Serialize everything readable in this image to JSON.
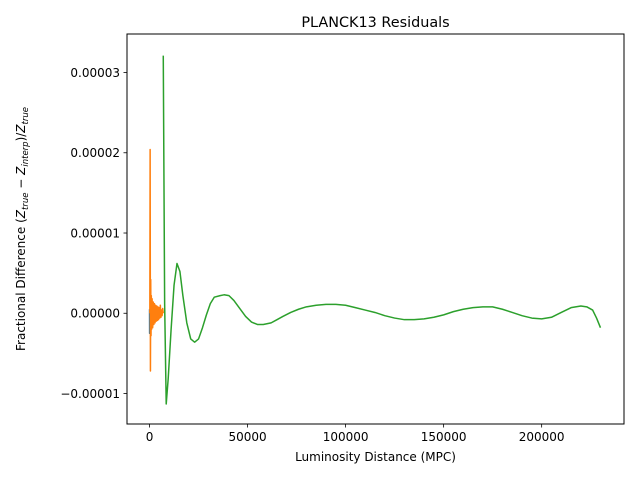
{
  "chart_data": {
    "type": "line",
    "title": "PLANCK13 Residuals",
    "xlabel": "Luminosity Distance (MPC)",
    "ylabel": {
      "prefix": "Fractional Difference (",
      "z": "Z",
      "true_sub": "true",
      "minus": " − ",
      "interp_sub": "interp",
      "mid": ")/",
      "suffix": ""
    },
    "xlim": [
      -11500,
      242000
    ],
    "ylim": [
      -1.38e-05,
      3.48e-05
    ],
    "xticks": [
      0,
      50000,
      100000,
      150000,
      200000
    ],
    "xtick_labels": [
      "0",
      "50000",
      "100000",
      "150000",
      "200000"
    ],
    "yticks": [
      -1e-05,
      0,
      1e-05,
      2e-05,
      3e-05
    ],
    "ytick_labels": [
      "−0.00001",
      "0.00000",
      "0.00001",
      "0.00002",
      "0.00003"
    ],
    "grid": false,
    "series": [
      {
        "color": "#1f77b4",
        "x": [
          0,
          30,
          60,
          100,
          140,
          180,
          220,
          260,
          300
        ],
        "y": [
          5e-07,
          -2.5e-06,
          4e-07,
          -1.8e-06,
          2e-07,
          -1.2e-06,
          -6e-07,
          -2e-07,
          0.0
        ]
      },
      {
        "color": "#ff7f0e",
        "x": [
          150,
          300,
          450,
          600,
          750,
          900,
          1050,
          1300,
          1600,
          1900,
          2200,
          2500,
          2800,
          3100,
          3400,
          3700,
          4000,
          4300,
          4600,
          4900,
          5200,
          5500,
          5800,
          6100,
          6400,
          6700,
          7000
        ],
        "y": [
          0.0,
          2.04e-05,
          -7.2e-06,
          4.2e-06,
          -2.8e-06,
          2.2e-06,
          -2e-06,
          1.8e-06,
          -1.8e-06,
          1.4e-06,
          -1.4e-06,
          1.2e-06,
          -1.2e-06,
          1e-06,
          -1e-06,
          9e-07,
          -9e-07,
          8e-07,
          -8e-07,
          7e-07,
          -6e-07,
          1e-06,
          -5e-07,
          4e-07,
          -3e-07,
          6e-07,
          0.0
        ]
      },
      {
        "color": "#2ca02c",
        "x": [
          7000,
          7700,
          8500,
          9500,
          11000,
          12500,
          14000,
          15500,
          17000,
          19000,
          21000,
          23000,
          25000,
          27000,
          29000,
          31000,
          33000,
          36000,
          38000,
          40500,
          43000,
          46000,
          49000,
          52000,
          55000,
          58000,
          62000,
          65000,
          68000,
          72000,
          76000,
          80000,
          85000,
          90000,
          95000,
          100000,
          105000,
          110000,
          115000,
          120000,
          125000,
          130000,
          135000,
          140000,
          145000,
          150000,
          155000,
          160000,
          165000,
          170000,
          175000,
          180000,
          185000,
          190000,
          195000,
          200000,
          205000,
          210000,
          215000,
          220000,
          223000,
          226000,
          228000,
          230000
        ],
        "y": [
          3.21e-05,
          1.2e-06,
          -1.13e-05,
          -8.2e-06,
          -2e-06,
          3.5e-06,
          6.2e-06,
          5.2e-06,
          2.2e-06,
          -1.2e-06,
          -3.2e-06,
          -3.6e-06,
          -3.2e-06,
          -1.8e-06,
          -2e-07,
          1.2e-06,
          2e-06,
          2.2e-06,
          2.3e-06,
          2.2e-06,
          1.6e-06,
          6e-07,
          -4e-07,
          -1.1e-06,
          -1.4e-06,
          -1.4e-06,
          -1.2e-06,
          -8e-07,
          -4e-07,
          1e-07,
          5e-07,
          8e-07,
          1e-06,
          1.1e-06,
          1.1e-06,
          1e-06,
          7e-07,
          4e-07,
          1e-07,
          -3e-07,
          -6e-07,
          -8e-07,
          -8e-07,
          -7e-07,
          -5e-07,
          -2e-07,
          2e-07,
          5e-07,
          7e-07,
          8e-07,
          8e-07,
          5e-07,
          1e-07,
          -3e-07,
          -6e-07,
          -7e-07,
          -5e-07,
          1e-07,
          7e-07,
          9e-07,
          8e-07,
          4e-07,
          -6e-07,
          -1.8e-06
        ]
      }
    ]
  }
}
